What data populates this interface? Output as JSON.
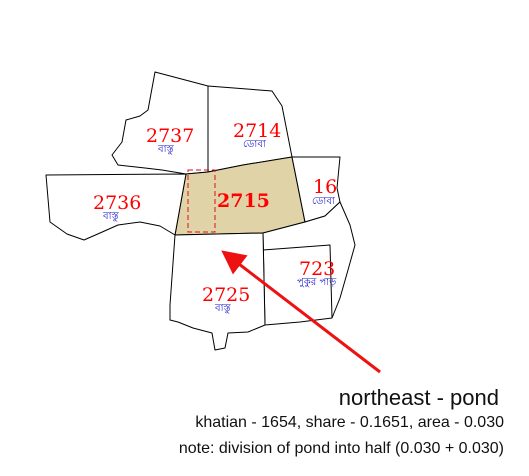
{
  "plots": [
    {
      "id": "2737",
      "label": "2737",
      "sublabel": "বাস্তু"
    },
    {
      "id": "2714",
      "label": "2714",
      "sublabel": "ডোবা"
    },
    {
      "id": "2715",
      "label": "2715",
      "sublabel": "",
      "highlighted": true
    },
    {
      "id": "16",
      "label": "16",
      "sublabel": "ডোবা"
    },
    {
      "id": "2736",
      "label": "2736",
      "sublabel": "বাস্তু"
    },
    {
      "id": "723",
      "label": "723",
      "sublabel": "পুকুর পাড়"
    },
    {
      "id": "2725",
      "label": "2725",
      "sublabel": "বাস্তু"
    }
  ],
  "colors": {
    "highlight_fill": "#e0d3a8",
    "label": "#ff0000",
    "sublabel": "#1a1acc",
    "arrow": "#ee1111"
  },
  "caption": {
    "title": "northeast - pond",
    "line1": "khatian - 1654, share - 0.1651, area - 0.030",
    "line2": "note: division of pond into half (0.030 + 0.030)"
  }
}
